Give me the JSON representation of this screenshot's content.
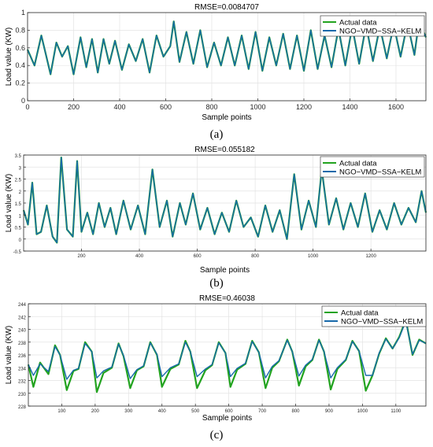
{
  "chart_data": [
    {
      "type": "line",
      "panel_label": "(a)",
      "title": "RMSE=0.0084707",
      "xlabel": "Sample points",
      "ylabel": "Load value (KW)",
      "xlim": [
        0,
        1730
      ],
      "ylim": [
        0,
        1
      ],
      "xticks": [
        0,
        200,
        400,
        600,
        800,
        1000,
        1200,
        1400,
        1600
      ],
      "yticks": [
        0,
        0.2,
        0.4,
        0.6,
        0.8,
        1
      ],
      "ytick_labels": [
        "0",
        "0.2",
        "0.4",
        "0.6",
        "0.8",
        "1"
      ],
      "grid": true,
      "legend_position": "top-right",
      "series": [
        {
          "name": "Actual data",
          "color": "#22a31f"
        },
        {
          "name": "NGO−VMD−SSA−KELM",
          "color": "#1769aa"
        }
      ],
      "x": [
        0,
        30,
        60,
        80,
        100,
        125,
        150,
        175,
        200,
        230,
        255,
        280,
        305,
        330,
        355,
        380,
        410,
        440,
        470,
        500,
        530,
        560,
        590,
        620,
        635,
        660,
        690,
        720,
        750,
        780,
        810,
        840,
        870,
        900,
        930,
        960,
        990,
        1020,
        1050,
        1080,
        1110,
        1140,
        1170,
        1200,
        1230,
        1260,
        1290,
        1320,
        1350,
        1380,
        1410,
        1440,
        1470,
        1500,
        1530,
        1560,
        1590,
        1620,
        1650,
        1680,
        1700,
        1730
      ],
      "actual": [
        0.58,
        0.4,
        0.74,
        0.52,
        0.3,
        0.66,
        0.5,
        0.62,
        0.3,
        0.72,
        0.38,
        0.7,
        0.32,
        0.7,
        0.42,
        0.68,
        0.35,
        0.64,
        0.45,
        0.7,
        0.32,
        0.74,
        0.5,
        0.62,
        0.9,
        0.44,
        0.78,
        0.42,
        0.8,
        0.38,
        0.66,
        0.4,
        0.72,
        0.4,
        0.74,
        0.36,
        0.78,
        0.34,
        0.72,
        0.4,
        0.76,
        0.36,
        0.74,
        0.34,
        0.8,
        0.36,
        0.74,
        0.38,
        0.82,
        0.4,
        0.84,
        0.42,
        0.86,
        0.45,
        0.84,
        0.48,
        0.86,
        0.5,
        0.88,
        0.52,
        0.9,
        0.72
      ],
      "predicted": [
        0.58,
        0.4,
        0.74,
        0.52,
        0.3,
        0.66,
        0.5,
        0.62,
        0.3,
        0.72,
        0.38,
        0.7,
        0.32,
        0.7,
        0.42,
        0.68,
        0.35,
        0.64,
        0.45,
        0.7,
        0.32,
        0.74,
        0.5,
        0.62,
        0.9,
        0.44,
        0.78,
        0.42,
        0.8,
        0.38,
        0.66,
        0.4,
        0.72,
        0.4,
        0.74,
        0.36,
        0.78,
        0.34,
        0.72,
        0.4,
        0.76,
        0.36,
        0.74,
        0.34,
        0.8,
        0.36,
        0.74,
        0.38,
        0.82,
        0.4,
        0.84,
        0.42,
        0.86,
        0.45,
        0.84,
        0.48,
        0.86,
        0.5,
        0.88,
        0.52,
        0.9,
        0.72
      ]
    },
    {
      "type": "line",
      "panel_label": "(b)",
      "title": "RMSE=0.055182",
      "xlabel": "Sample points",
      "ylabel": "Load value (KW)",
      "xlim": [
        0,
        1390
      ],
      "ylim": [
        -0.5,
        3.5
      ],
      "xticks": [
        200,
        400,
        600,
        800,
        1000,
        1200
      ],
      "yticks": [
        -0.5,
        0,
        0.5,
        1,
        1.5,
        2,
        2.5,
        3,
        3.5
      ],
      "ytick_labels": [
        "-0.5",
        "0",
        "0.5",
        "1",
        "1.5",
        "2",
        "2.5",
        "3",
        "3.5"
      ],
      "grid": true,
      "legend_position": "top-right",
      "series": [
        {
          "name": "Actual data",
          "color": "#22a31f"
        },
        {
          "name": "NGO−VMD−SSA−KELM",
          "color": "#1769aa"
        }
      ],
      "x": [
        0,
        15,
        30,
        45,
        60,
        80,
        100,
        115,
        130,
        150,
        170,
        185,
        200,
        220,
        240,
        260,
        280,
        300,
        320,
        345,
        370,
        395,
        420,
        445,
        470,
        495,
        515,
        540,
        560,
        585,
        610,
        635,
        660,
        685,
        710,
        735,
        760,
        785,
        810,
        835,
        860,
        885,
        910,
        935,
        960,
        985,
        1010,
        1030,
        1055,
        1080,
        1105,
        1130,
        1155,
        1180,
        1205,
        1230,
        1255,
        1280,
        1305,
        1330,
        1355,
        1375,
        1390
      ],
      "actual": [
        1.2,
        0.6,
        2.35,
        0.2,
        0.3,
        1.4,
        0.1,
        -0.15,
        3.4,
        0.4,
        0.1,
        3.25,
        0.3,
        1.1,
        0.2,
        1.5,
        0.5,
        1.3,
        0.2,
        1.6,
        0.4,
        1.4,
        0.2,
        2.9,
        0.5,
        1.6,
        0.1,
        1.5,
        0.6,
        1.9,
        0.4,
        1.3,
        0.2,
        1.1,
        0.3,
        1.6,
        0.5,
        0.9,
        0.1,
        1.4,
        0.3,
        1.2,
        0.0,
        2.7,
        0.4,
        1.6,
        0.5,
        2.9,
        0.6,
        1.7,
        0.4,
        1.5,
        0.5,
        1.9,
        0.3,
        1.2,
        0.4,
        1.5,
        0.6,
        1.3,
        0.7,
        2.0,
        1.1
      ],
      "predicted": [
        1.2,
        0.6,
        2.35,
        0.2,
        0.3,
        1.4,
        0.1,
        -0.15,
        3.4,
        0.4,
        0.1,
        3.25,
        0.3,
        1.1,
        0.2,
        1.5,
        0.5,
        1.3,
        0.2,
        1.6,
        0.4,
        1.4,
        0.2,
        2.9,
        0.5,
        1.6,
        0.1,
        1.5,
        0.6,
        1.9,
        0.4,
        1.3,
        0.2,
        1.1,
        0.3,
        1.6,
        0.5,
        0.9,
        0.1,
        1.4,
        0.3,
        1.2,
        0.0,
        2.7,
        0.4,
        1.6,
        0.5,
        2.9,
        0.6,
        1.7,
        0.4,
        1.5,
        0.5,
        1.9,
        0.3,
        1.2,
        0.4,
        1.5,
        0.6,
        1.3,
        0.7,
        2.0,
        1.1
      ]
    },
    {
      "type": "line",
      "panel_label": "(c)",
      "title": "RMSE=0.46038",
      "xlabel": "Sample points",
      "ylabel": "Load value (KW)",
      "xlim": [
        0,
        1190
      ],
      "ylim": [
        228,
        244
      ],
      "xticks": [
        100,
        200,
        300,
        400,
        500,
        600,
        700,
        800,
        900,
        1000,
        1100
      ],
      "yticks": [
        228,
        230,
        232,
        234,
        236,
        238,
        240,
        242,
        244
      ],
      "ytick_labels": [
        "228",
        "230",
        "232",
        "234",
        "236",
        "238",
        "240",
        "242",
        "244"
      ],
      "grid": true,
      "legend_position": "top-right",
      "series": [
        {
          "name": "Actual data",
          "color": "#22a31f"
        },
        {
          "name": "NGO−VMD−SSA−KELM",
          "color": "#1769aa"
        }
      ],
      "x": [
        0,
        15,
        35,
        60,
        80,
        95,
        115,
        135,
        150,
        170,
        190,
        205,
        225,
        250,
        270,
        285,
        305,
        325,
        345,
        365,
        385,
        400,
        425,
        450,
        470,
        485,
        505,
        530,
        550,
        570,
        590,
        605,
        625,
        650,
        670,
        690,
        710,
        730,
        750,
        775,
        790,
        810,
        830,
        850,
        870,
        885,
        905,
        925,
        950,
        970,
        990,
        1010,
        1030,
        1050,
        1070,
        1090,
        1110,
        1130,
        1150,
        1170,
        1190
      ],
      "actual": [
        234.5,
        231.0,
        234.8,
        233.0,
        237.5,
        236.0,
        230.5,
        233.5,
        233.8,
        238.0,
        236.5,
        230.2,
        233.2,
        234.0,
        237.8,
        235.8,
        230.8,
        233.6,
        234.2,
        238.0,
        236.0,
        231.0,
        233.8,
        234.5,
        238.2,
        236.5,
        230.8,
        233.6,
        234.4,
        238.0,
        236.3,
        231.0,
        233.7,
        234.6,
        238.2,
        236.4,
        230.8,
        234.0,
        235.0,
        238.4,
        236.5,
        231.2,
        234.2,
        235.2,
        238.4,
        236.5,
        230.6,
        233.8,
        235.2,
        238.2,
        236.6,
        230.4,
        232.8,
        236.2,
        238.6,
        237.0,
        238.8,
        241.5,
        236.0,
        238.4,
        237.8
      ],
      "predicted": [
        234.5,
        232.8,
        234.6,
        233.4,
        237.3,
        236.0,
        232.2,
        233.6,
        233.9,
        237.8,
        236.5,
        232.4,
        233.5,
        234.1,
        237.7,
        235.9,
        232.3,
        233.7,
        234.3,
        237.9,
        236.1,
        232.6,
        234.0,
        234.6,
        238.0,
        236.5,
        232.6,
        233.8,
        234.5,
        237.9,
        236.3,
        232.6,
        233.9,
        234.7,
        238.1,
        236.4,
        232.4,
        234.2,
        235.1,
        238.3,
        236.5,
        232.7,
        234.4,
        235.3,
        238.3,
        236.5,
        232.4,
        234.0,
        235.3,
        238.1,
        236.6,
        232.8,
        232.8,
        236.3,
        238.5,
        237.0,
        238.7,
        241.3,
        236.1,
        238.3,
        237.8
      ]
    }
  ]
}
